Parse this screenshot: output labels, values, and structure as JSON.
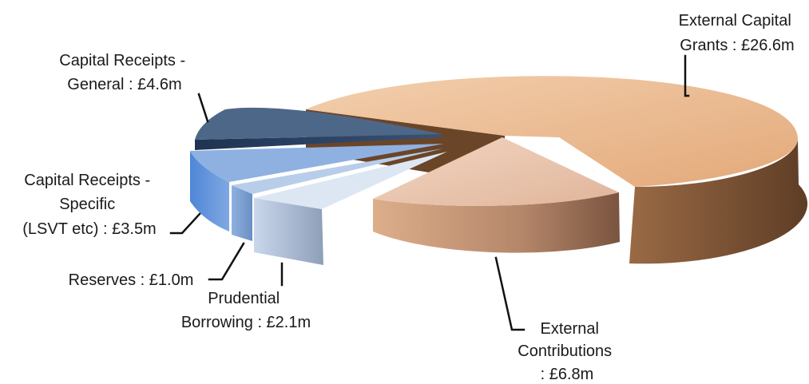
{
  "chart_data": {
    "type": "pie",
    "title": "",
    "categories": [
      "External Capital Grants",
      "External Contributions",
      "Prudential Borrowing",
      "Reserves",
      "Capital Receipts - Specific (LSVT etc)",
      "Capital Receipts - General"
    ],
    "values": [
      26.6,
      6.8,
      2.1,
      1.0,
      3.5,
      4.6
    ],
    "unit": "£m",
    "style": "3d-exploded",
    "labels": [
      [
        "External Capital",
        "Grants : £26.6m"
      ],
      [
        "External",
        "Contributions",
        ": £6.8m"
      ],
      [
        "Prudential",
        "Borrowing : £2.1m"
      ],
      [
        "Reserves : £1.0m"
      ],
      [
        "Capital Receipts -",
        "Specific",
        "(LSVT etc) : £3.5m"
      ],
      [
        "Capital Receipts -",
        "General : £4.6m"
      ]
    ],
    "colors": [
      "#e8b48c",
      "#e2b698",
      "#b9cde6",
      "#8fb2e0",
      "#6f9fde",
      "#4e6a8e"
    ]
  }
}
